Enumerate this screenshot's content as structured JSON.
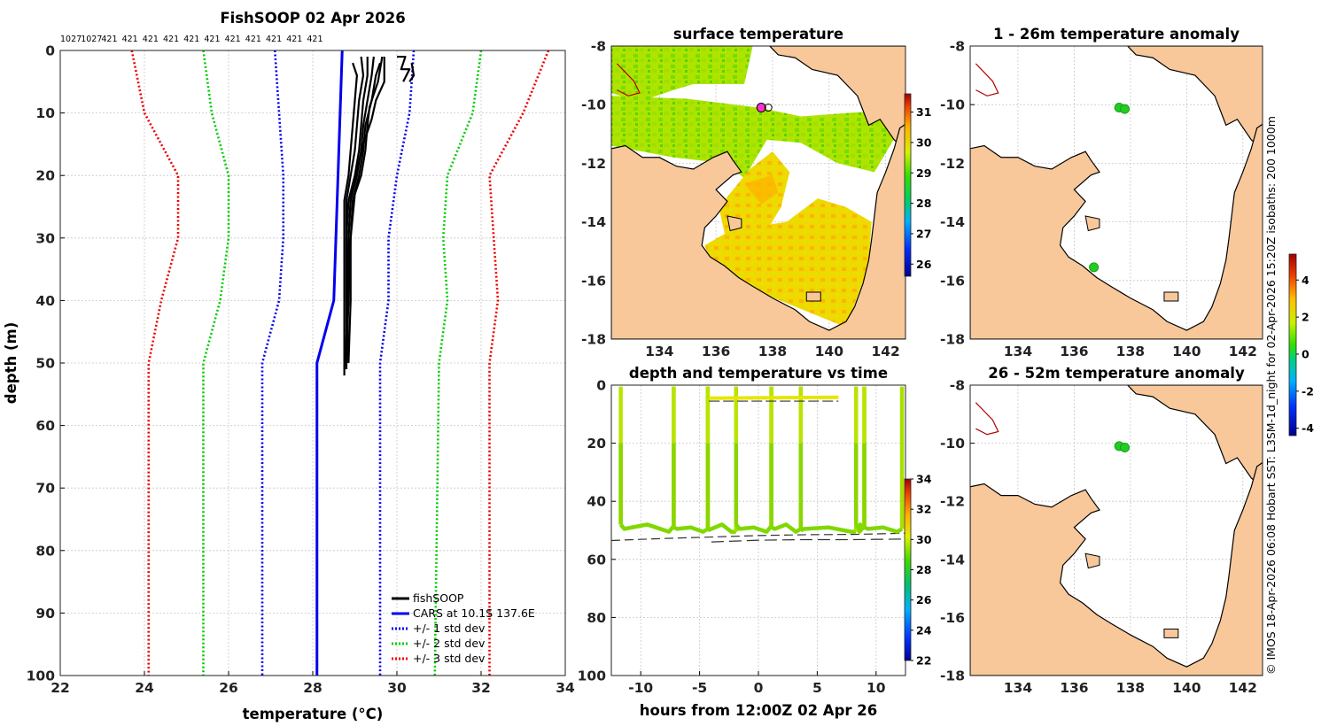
{
  "chart_data": [
    {
      "id": "profile",
      "type": "line",
      "title": "FishSOOP 02 Apr 2026",
      "xlabel": "temperature (°C)",
      "ylabel": "depth (m)",
      "xlim": [
        22,
        34
      ],
      "ylim": [
        100,
        0
      ],
      "x_ticks": [
        22,
        24,
        26,
        28,
        30,
        32,
        34
      ],
      "y_ticks": [
        0,
        10,
        20,
        30,
        40,
        50,
        60,
        70,
        80,
        90,
        100
      ],
      "top_labels": [
        "1027",
        "1027",
        "421",
        "421",
        "421",
        "421",
        "421",
        "421",
        "421",
        "421",
        "421",
        "421",
        "421"
      ],
      "legend_position": "bottom-right",
      "series": [
        {
          "name": "CARS at 10.1S 137.6E",
          "color": "#0000ee",
          "style": "solid",
          "points": [
            [
              28.7,
              0
            ],
            [
              28.65,
              10
            ],
            [
              28.6,
              20
            ],
            [
              28.55,
              30
            ],
            [
              28.5,
              40
            ],
            [
              28.1,
              50
            ],
            [
              28.1,
              100
            ]
          ]
        },
        {
          "name": "+/- 1 std dev",
          "color": "#0000ee",
          "style": "dotted",
          "points": [
            [
              27.1,
              0
            ],
            [
              27.2,
              10
            ],
            [
              27.3,
              20
            ],
            [
              27.3,
              30
            ],
            [
              27.2,
              40
            ],
            [
              26.8,
              50
            ],
            [
              26.8,
              100
            ]
          ]
        },
        {
          "name": "+/- 1 std dev",
          "color": "#0000ee",
          "style": "dotted",
          "legend": false,
          "points": [
            [
              30.4,
              0
            ],
            [
              30.3,
              10
            ],
            [
              30.0,
              20
            ],
            [
              29.8,
              30
            ],
            [
              29.8,
              40
            ],
            [
              29.6,
              50
            ],
            [
              29.6,
              100
            ]
          ]
        },
        {
          "name": "+/- 2 std dev",
          "color": "#00cc00",
          "style": "dotted",
          "points": [
            [
              25.4,
              0
            ],
            [
              25.6,
              10
            ],
            [
              26.0,
              20
            ],
            [
              26.0,
              30
            ],
            [
              25.8,
              40
            ],
            [
              25.4,
              50
            ],
            [
              25.4,
              100
            ]
          ]
        },
        {
          "name": "+/- 2 std dev",
          "color": "#00cc00",
          "style": "dotted",
          "legend": false,
          "points": [
            [
              32.0,
              0
            ],
            [
              31.8,
              10
            ],
            [
              31.2,
              20
            ],
            [
              31.1,
              30
            ],
            [
              31.2,
              40
            ],
            [
              31.0,
              50
            ],
            [
              30.9,
              100
            ]
          ]
        },
        {
          "name": "+/- 3 std dev",
          "color": "#ee0000",
          "style": "dotted",
          "points": [
            [
              23.7,
              0
            ],
            [
              24.0,
              10
            ],
            [
              24.8,
              20
            ],
            [
              24.8,
              30
            ],
            [
              24.4,
              40
            ],
            [
              24.1,
              50
            ],
            [
              24.1,
              100
            ]
          ]
        },
        {
          "name": "+/- 3 std dev",
          "color": "#ee0000",
          "style": "dotted",
          "legend": false,
          "points": [
            [
              33.6,
              0
            ],
            [
              33.0,
              10
            ],
            [
              32.2,
              20
            ],
            [
              32.3,
              30
            ],
            [
              32.4,
              40
            ],
            [
              32.2,
              50
            ],
            [
              32.2,
              100
            ]
          ]
        }
      ],
      "fishsoop": {
        "name": "fishSOOP",
        "color": "#000000",
        "profiles": [
          [
            [
              28.95,
              2
            ],
            [
              29.05,
              4
            ],
            [
              29.0,
              8
            ],
            [
              28.95,
              12
            ],
            [
              28.9,
              16
            ],
            [
              28.85,
              20
            ],
            [
              28.75,
              24
            ],
            [
              28.75,
              30
            ],
            [
              28.75,
              40
            ],
            [
              28.75,
              52
            ]
          ],
          [
            [
              29.15,
              1
            ],
            [
              29.2,
              4
            ],
            [
              29.1,
              8
            ],
            [
              29.05,
              12
            ],
            [
              29.0,
              16
            ],
            [
              28.9,
              20
            ],
            [
              28.8,
              24
            ],
            [
              28.8,
              30
            ],
            [
              28.8,
              40
            ],
            [
              28.8,
              51
            ]
          ],
          [
            [
              29.3,
              1
            ],
            [
              29.3,
              4
            ],
            [
              29.2,
              8
            ],
            [
              29.15,
              12
            ],
            [
              29.1,
              16
            ],
            [
              29.0,
              20
            ],
            [
              28.85,
              24
            ],
            [
              28.8,
              30
            ],
            [
              28.8,
              40
            ],
            [
              28.85,
              50
            ]
          ],
          [
            [
              29.45,
              1
            ],
            [
              29.4,
              4
            ],
            [
              29.3,
              8
            ],
            [
              29.2,
              12
            ],
            [
              29.15,
              16
            ],
            [
              29.05,
              20
            ],
            [
              28.9,
              24
            ],
            [
              28.85,
              30
            ],
            [
              28.85,
              40
            ],
            [
              28.8,
              50
            ]
          ],
          [
            [
              29.6,
              2
            ],
            [
              29.5,
              4
            ],
            [
              29.4,
              8
            ],
            [
              29.25,
              12
            ],
            [
              29.2,
              16
            ],
            [
              29.1,
              20
            ],
            [
              28.95,
              24
            ],
            [
              28.9,
              30
            ],
            [
              28.9,
              40
            ],
            [
              28.85,
              50
            ]
          ],
          [
            [
              29.65,
              1
            ],
            [
              29.55,
              5
            ],
            [
              29.35,
              9
            ],
            [
              29.3,
              12
            ],
            [
              29.25,
              16
            ],
            [
              29.15,
              20
            ],
            [
              29.0,
              23
            ],
            [
              28.9,
              30
            ],
            [
              28.85,
              40
            ],
            [
              28.75,
              51
            ]
          ],
          [
            [
              29.7,
              1
            ],
            [
              29.7,
              5
            ],
            [
              29.5,
              8
            ],
            [
              29.4,
              11
            ],
            [
              29.2,
              15
            ],
            [
              29.05,
              19
            ],
            [
              28.9,
              24
            ],
            [
              28.85,
              30
            ],
            [
              28.8,
              45
            ]
          ],
          [
            [
              30.0,
              1
            ],
            [
              30.2,
              1
            ],
            [
              30.1,
              3
            ],
            [
              30.3,
              3
            ],
            [
              30.15,
              5
            ]
          ],
          [
            [
              30.35,
              2
            ],
            [
              30.4,
              4
            ],
            [
              30.3,
              5
            ]
          ]
        ]
      }
    },
    {
      "id": "sst",
      "type": "heatmap",
      "title": "surface temperature",
      "xlim": [
        132.3,
        142.7
      ],
      "ylim": [
        -18,
        -8
      ],
      "x_ticks": [
        134,
        136,
        138,
        140,
        142
      ],
      "y_ticks": [
        -8,
        -10,
        -12,
        -14,
        -16,
        -18
      ],
      "colorbar": {
        "min": 25.6,
        "max": 31.6,
        "ticks": [
          26,
          27,
          28,
          29,
          30,
          31
        ]
      },
      "marker": {
        "lon": 137.6,
        "lat": -10.1
      }
    },
    {
      "id": "anom1",
      "type": "scatter",
      "title": "1 - 26m temperature anomaly",
      "xlim": [
        132.3,
        142.7
      ],
      "ylim": [
        -18,
        -8
      ],
      "x_ticks": [
        134,
        136,
        138,
        140,
        142
      ],
      "y_ticks": [
        -8,
        -10,
        -12,
        -14,
        -16,
        -18
      ],
      "points": [
        {
          "lon": 137.6,
          "lat": -10.1,
          "anomaly": 0.3
        },
        {
          "lon": 137.8,
          "lat": -10.15,
          "anomaly": 0.3
        },
        {
          "lon": 136.7,
          "lat": -15.55,
          "anomaly": 0.3
        }
      ]
    },
    {
      "id": "anom2",
      "type": "scatter",
      "title": "26 - 52m temperature anomaly",
      "xlim": [
        132.3,
        142.7
      ],
      "ylim": [
        -18,
        -8
      ],
      "x_ticks": [
        134,
        136,
        138,
        140,
        142
      ],
      "y_ticks": [
        -8,
        -10,
        -12,
        -14,
        -16,
        -18
      ],
      "points": [
        {
          "lon": 137.6,
          "lat": -10.1,
          "anomaly": 0.3
        },
        {
          "lon": 137.8,
          "lat": -10.15,
          "anomaly": 0.3
        }
      ],
      "colorbar": {
        "min": -4.4,
        "max": 5.4,
        "ticks": [
          -4,
          -2,
          0,
          2,
          4
        ]
      }
    },
    {
      "id": "timeseries",
      "type": "scatter",
      "title": "depth and temperature vs time",
      "xlabel": "hours from 12:00Z 02 Apr 26",
      "xlim": [
        -12.5,
        12.5
      ],
      "ylim": [
        100,
        0
      ],
      "x_ticks": [
        -10,
        -5,
        0,
        5,
        10
      ],
      "y_ticks": [
        0,
        20,
        40,
        60,
        80,
        100
      ],
      "colorbar": {
        "min": 22,
        "max": 34,
        "ticks": [
          22,
          24,
          26,
          28,
          30,
          32,
          34
        ]
      },
      "bottom_depth": [
        [
          -12.5,
          53.5
        ],
        [
          -8,
          52.8
        ],
        [
          -4,
          52.3
        ],
        [
          0,
          51.8
        ],
        [
          4,
          51.5
        ],
        [
          8,
          51.4
        ],
        [
          12.5,
          51
        ]
      ],
      "bottom_depth_2": [
        [
          -4,
          54
        ],
        [
          0,
          53.4
        ],
        [
          4,
          53.2
        ],
        [
          8,
          53.2
        ],
        [
          12.5,
          53
        ]
      ],
      "surface_line": {
        "from": -4.2,
        "to": 6.8,
        "depth": 5.5
      },
      "trawls": [
        {
          "start": -11.7,
          "end": -7.2
        },
        {
          "start": -7.2,
          "end": -4.3
        },
        {
          "start": -4.3,
          "end": -1.9
        },
        {
          "start": -1.9,
          "end": 1.1
        },
        {
          "start": 1.1,
          "end": 3.6
        },
        {
          "start": 3.6,
          "end": 8.3
        },
        {
          "start": 8.3,
          "end": 9.0
        },
        {
          "start": 9.0,
          "end": 12.2
        }
      ]
    }
  ],
  "credit": "© IMOS 18-Apr-2026 06:08 Hobart SST: L3SM-1d_night for 02-Apr-2026 15:20Z isobaths: 200  1000m",
  "legend": {
    "fishsoop": "fishSOOP",
    "cars": "CARS at 10.1S 137.6E",
    "std1": "+/- 1 std dev",
    "std2": "+/- 2 std dev",
    "std3": "+/- 3 std dev"
  },
  "colors": {
    "land": "#f8c89a",
    "grid": "#d8d8d8",
    "cars": "#0000ee",
    "std2": "#00cc00",
    "std3": "#ee0000"
  }
}
